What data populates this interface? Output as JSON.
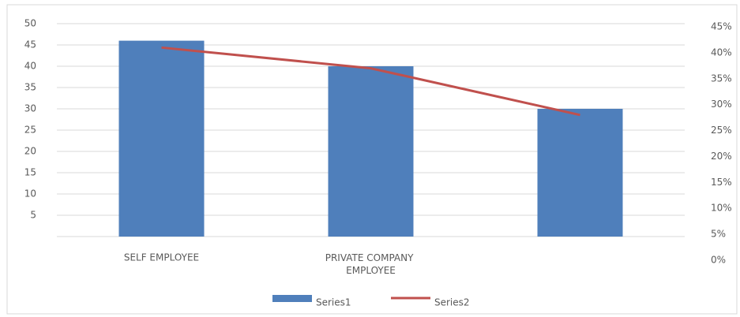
{
  "chart_data": {
    "type": "bar-line",
    "categories": [
      "SELF EMPLOYEE",
      "PRIVATE COMPANY EMPLOYEE",
      null
    ],
    "series": [
      {
        "name": "Series1",
        "color": "#4f7fbb",
        "type": "bar",
        "values": [
          46,
          40,
          30
        ]
      },
      {
        "name": "Series2",
        "color": "#c0504d",
        "type": "line",
        "axis": "y2",
        "values": [
          41,
          37,
          28
        ]
      }
    ],
    "ylim": [
      0,
      50
    ],
    "yticks": [
      5,
      10,
      15,
      20,
      25,
      30,
      35,
      40,
      45,
      50
    ],
    "y2lim": [
      0,
      45
    ],
    "y2ticks": [
      {
        "value": 0,
        "label": "0%"
      },
      {
        "value": 5,
        "label": "5%"
      },
      {
        "value": 10,
        "label": "10%"
      },
      {
        "value": 15,
        "label": "15%"
      },
      {
        "value": 20,
        "label": "20%"
      },
      {
        "value": 25,
        "label": "25%"
      },
      {
        "value": 30,
        "label": "30%"
      },
      {
        "value": 35,
        "label": "35%"
      },
      {
        "value": 40,
        "label": "40%"
      },
      {
        "value": 45,
        "label": "45%"
      }
    ],
    "grid": true,
    "legend": "bottom"
  }
}
